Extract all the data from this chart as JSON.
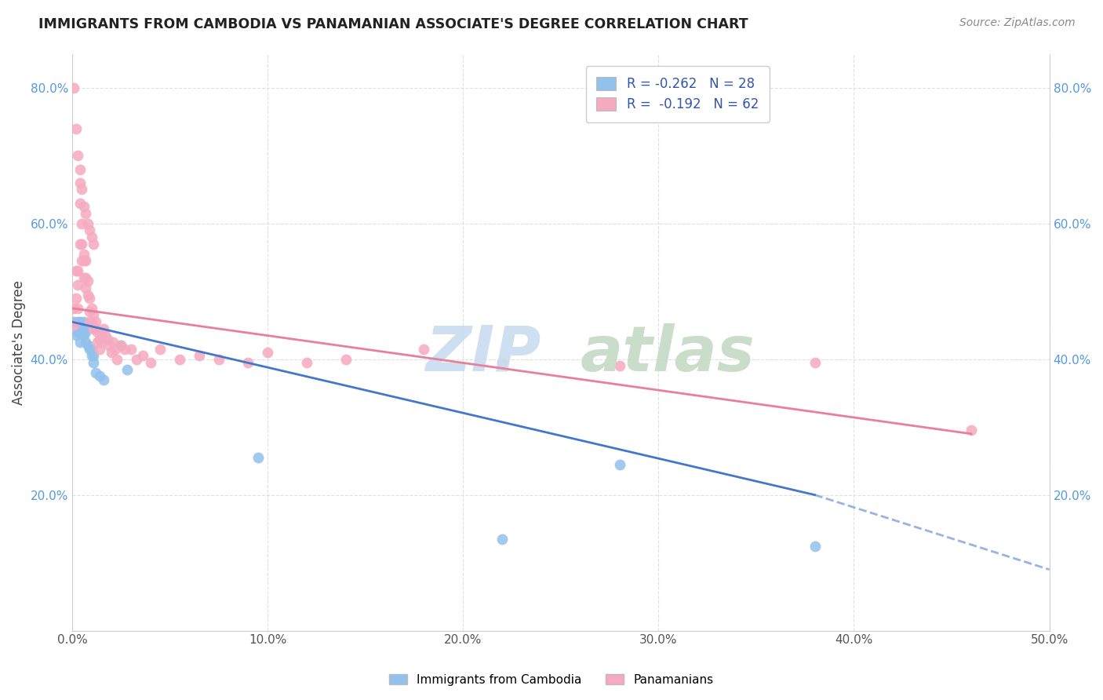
{
  "title": "IMMIGRANTS FROM CAMBODIA VS PANAMANIAN ASSOCIATE'S DEGREE CORRELATION CHART",
  "source": "Source: ZipAtlas.com",
  "ylabel": "Associate's Degree",
  "xlim": [
    0.0,
    0.5
  ],
  "ylim": [
    0.0,
    0.85
  ],
  "xticks": [
    0.0,
    0.1,
    0.2,
    0.3,
    0.4,
    0.5
  ],
  "xticklabels": [
    "0.0%",
    "10.0%",
    "20.0%",
    "30.0%",
    "40.0%",
    "50.0%"
  ],
  "yticks": [
    0.0,
    0.2,
    0.4,
    0.6,
    0.8
  ],
  "yticklabels": [
    "",
    "20.0%",
    "40.0%",
    "60.0%",
    "80.0%"
  ],
  "blue_color": "#92C1EC",
  "pink_color": "#F5AABF",
  "blue_line_color": "#4477CC",
  "pink_line_color": "#E8809A",
  "cambodia_x": [
    0.001,
    0.002,
    0.003,
    0.003,
    0.004,
    0.004,
    0.005,
    0.005,
    0.006,
    0.006,
    0.006,
    0.007,
    0.007,
    0.008,
    0.009,
    0.01,
    0.01,
    0.011,
    0.011,
    0.012,
    0.014,
    0.016,
    0.025,
    0.028,
    0.095,
    0.22,
    0.28,
    0.38
  ],
  "cambodia_y": [
    0.455,
    0.435,
    0.455,
    0.44,
    0.455,
    0.425,
    0.445,
    0.44,
    0.455,
    0.445,
    0.435,
    0.44,
    0.425,
    0.42,
    0.415,
    0.415,
    0.405,
    0.405,
    0.395,
    0.38,
    0.375,
    0.37,
    0.42,
    0.385,
    0.255,
    0.135,
    0.245,
    0.125
  ],
  "panama_x": [
    0.001,
    0.001,
    0.002,
    0.002,
    0.003,
    0.003,
    0.003,
    0.004,
    0.004,
    0.005,
    0.005,
    0.005,
    0.006,
    0.006,
    0.006,
    0.007,
    0.007,
    0.007,
    0.008,
    0.008,
    0.009,
    0.009,
    0.009,
    0.01,
    0.01,
    0.011,
    0.011,
    0.012,
    0.012,
    0.013,
    0.013,
    0.014,
    0.014,
    0.015,
    0.015,
    0.016,
    0.017,
    0.018,
    0.019,
    0.02,
    0.021,
    0.022,
    0.023,
    0.025,
    0.027,
    0.03,
    0.033,
    0.036,
    0.04,
    0.045,
    0.055,
    0.065,
    0.075,
    0.09,
    0.1,
    0.12,
    0.14,
    0.18,
    0.22,
    0.28,
    0.38,
    0.46
  ],
  "panama_y": [
    0.475,
    0.45,
    0.53,
    0.49,
    0.53,
    0.51,
    0.475,
    0.63,
    0.57,
    0.6,
    0.57,
    0.545,
    0.555,
    0.545,
    0.52,
    0.545,
    0.52,
    0.505,
    0.515,
    0.495,
    0.49,
    0.47,
    0.455,
    0.475,
    0.455,
    0.465,
    0.445,
    0.455,
    0.445,
    0.44,
    0.425,
    0.43,
    0.415,
    0.44,
    0.425,
    0.445,
    0.435,
    0.43,
    0.42,
    0.41,
    0.425,
    0.415,
    0.4,
    0.42,
    0.415,
    0.415,
    0.4,
    0.405,
    0.395,
    0.415,
    0.4,
    0.405,
    0.4,
    0.395,
    0.41,
    0.395,
    0.4,
    0.415,
    0.395,
    0.39,
    0.395,
    0.295
  ],
  "panama_high_x": [
    0.001,
    0.002,
    0.003,
    0.004,
    0.004,
    0.005,
    0.006,
    0.007,
    0.008,
    0.009,
    0.01,
    0.011
  ],
  "panama_high_y": [
    0.8,
    0.74,
    0.7,
    0.68,
    0.66,
    0.65,
    0.625,
    0.615,
    0.6,
    0.59,
    0.58,
    0.57
  ]
}
